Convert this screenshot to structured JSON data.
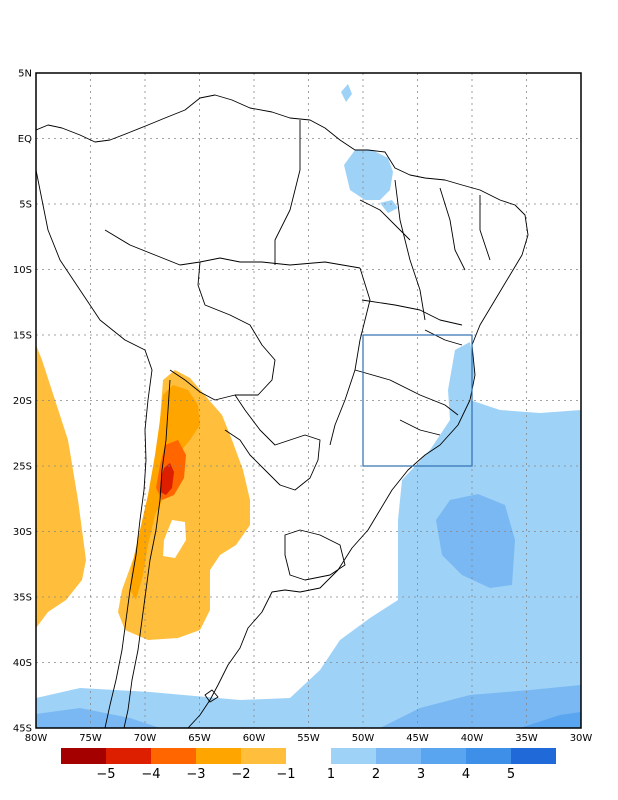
{
  "map": {
    "lat_labels": [
      "5N",
      "EQ",
      "5S",
      "10S",
      "15S",
      "20S",
      "25S",
      "30S",
      "35S",
      "40S",
      "45S"
    ],
    "lon_labels": [
      "80W",
      "75W",
      "70W",
      "65W",
      "60W",
      "55W",
      "50W",
      "45W",
      "40W",
      "35W",
      "30W"
    ],
    "extent": {
      "lon_min": -80,
      "lon_max": -30,
      "lat_min": -45,
      "lat_max": 5
    },
    "highlight_box": {
      "lon_min": -50,
      "lon_max": -40,
      "lat_min": -25,
      "lat_max": -15,
      "color": "#2e6fb0"
    }
  },
  "colorbar": {
    "negative_colors": [
      "#a50000",
      "#dd1f00",
      "#ff6600",
      "#ffa500",
      "#ffbe3c"
    ],
    "positive_colors": [
      "#9fd2f7",
      "#79b8f3",
      "#5aa5f0",
      "#3d8fe8",
      "#1f6ad8"
    ],
    "labels": [
      "−5",
      "−4",
      "−3",
      "−2",
      "−1",
      "1",
      "2",
      "3",
      "4",
      "5"
    ]
  },
  "shading_levels": {
    "light_orange": "#ffbe3c",
    "orange": "#ffa500",
    "dark_orange": "#ff6600",
    "red": "#dd1f00",
    "light_blue": "#9fd2f7",
    "mid_blue": "#79b8f3"
  }
}
